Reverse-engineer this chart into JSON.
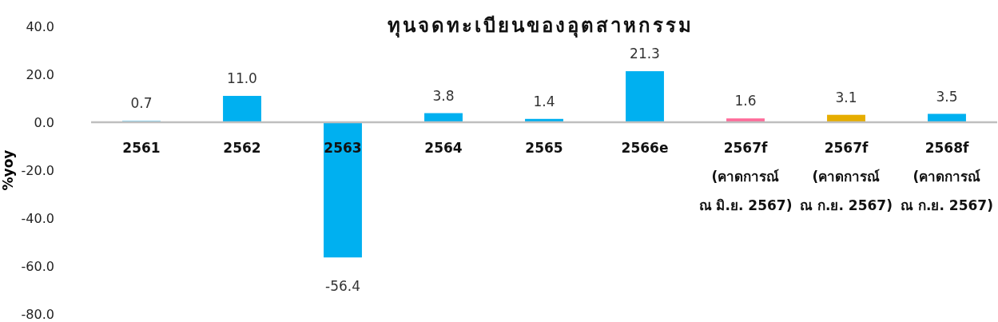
{
  "chart_data": {
    "type": "bar",
    "title": "ทุนจดทะเบียนของอุตสาหกรรม",
    "ylabel": "%yoy",
    "categories": [
      "2561",
      "2562",
      "2563",
      "2564",
      "2565",
      "2566e",
      "2567f\n(คาดการณ์\nณ มิ.ย. 2567)",
      "2567f\n(คาดการณ์\nณ ก.ย. 2567)",
      "2568f\n(คาดการณ์\nณ ก.ย. 2567)"
    ],
    "values": [
      0.7,
      11.0,
      -56.4,
      3.8,
      1.4,
      21.3,
      1.6,
      3.1,
      3.5
    ],
    "value_labels": [
      "0.7",
      "11.0",
      "-56.4",
      "3.8",
      "1.4",
      "21.3",
      "1.6",
      "3.1",
      "3.5"
    ],
    "colors": [
      "#8fd8f5",
      "#00b0f0",
      "#00b0f0",
      "#00b0f0",
      "#00b0f0",
      "#00b0f0",
      "#ff6b9a",
      "#e6ad00",
      "#00b0f0"
    ],
    "ylim": [
      -80,
      40
    ],
    "yticks": [
      {
        "value": 40,
        "label": "40.0"
      },
      {
        "value": 20,
        "label": "20.0"
      },
      {
        "value": 0,
        "label": "0.0"
      },
      {
        "value": -20,
        "label": "-20.0"
      },
      {
        "value": -40,
        "label": "-40.0"
      },
      {
        "value": -60,
        "label": "-60.0"
      },
      {
        "value": -80,
        "label": "-80.0"
      }
    ]
  }
}
